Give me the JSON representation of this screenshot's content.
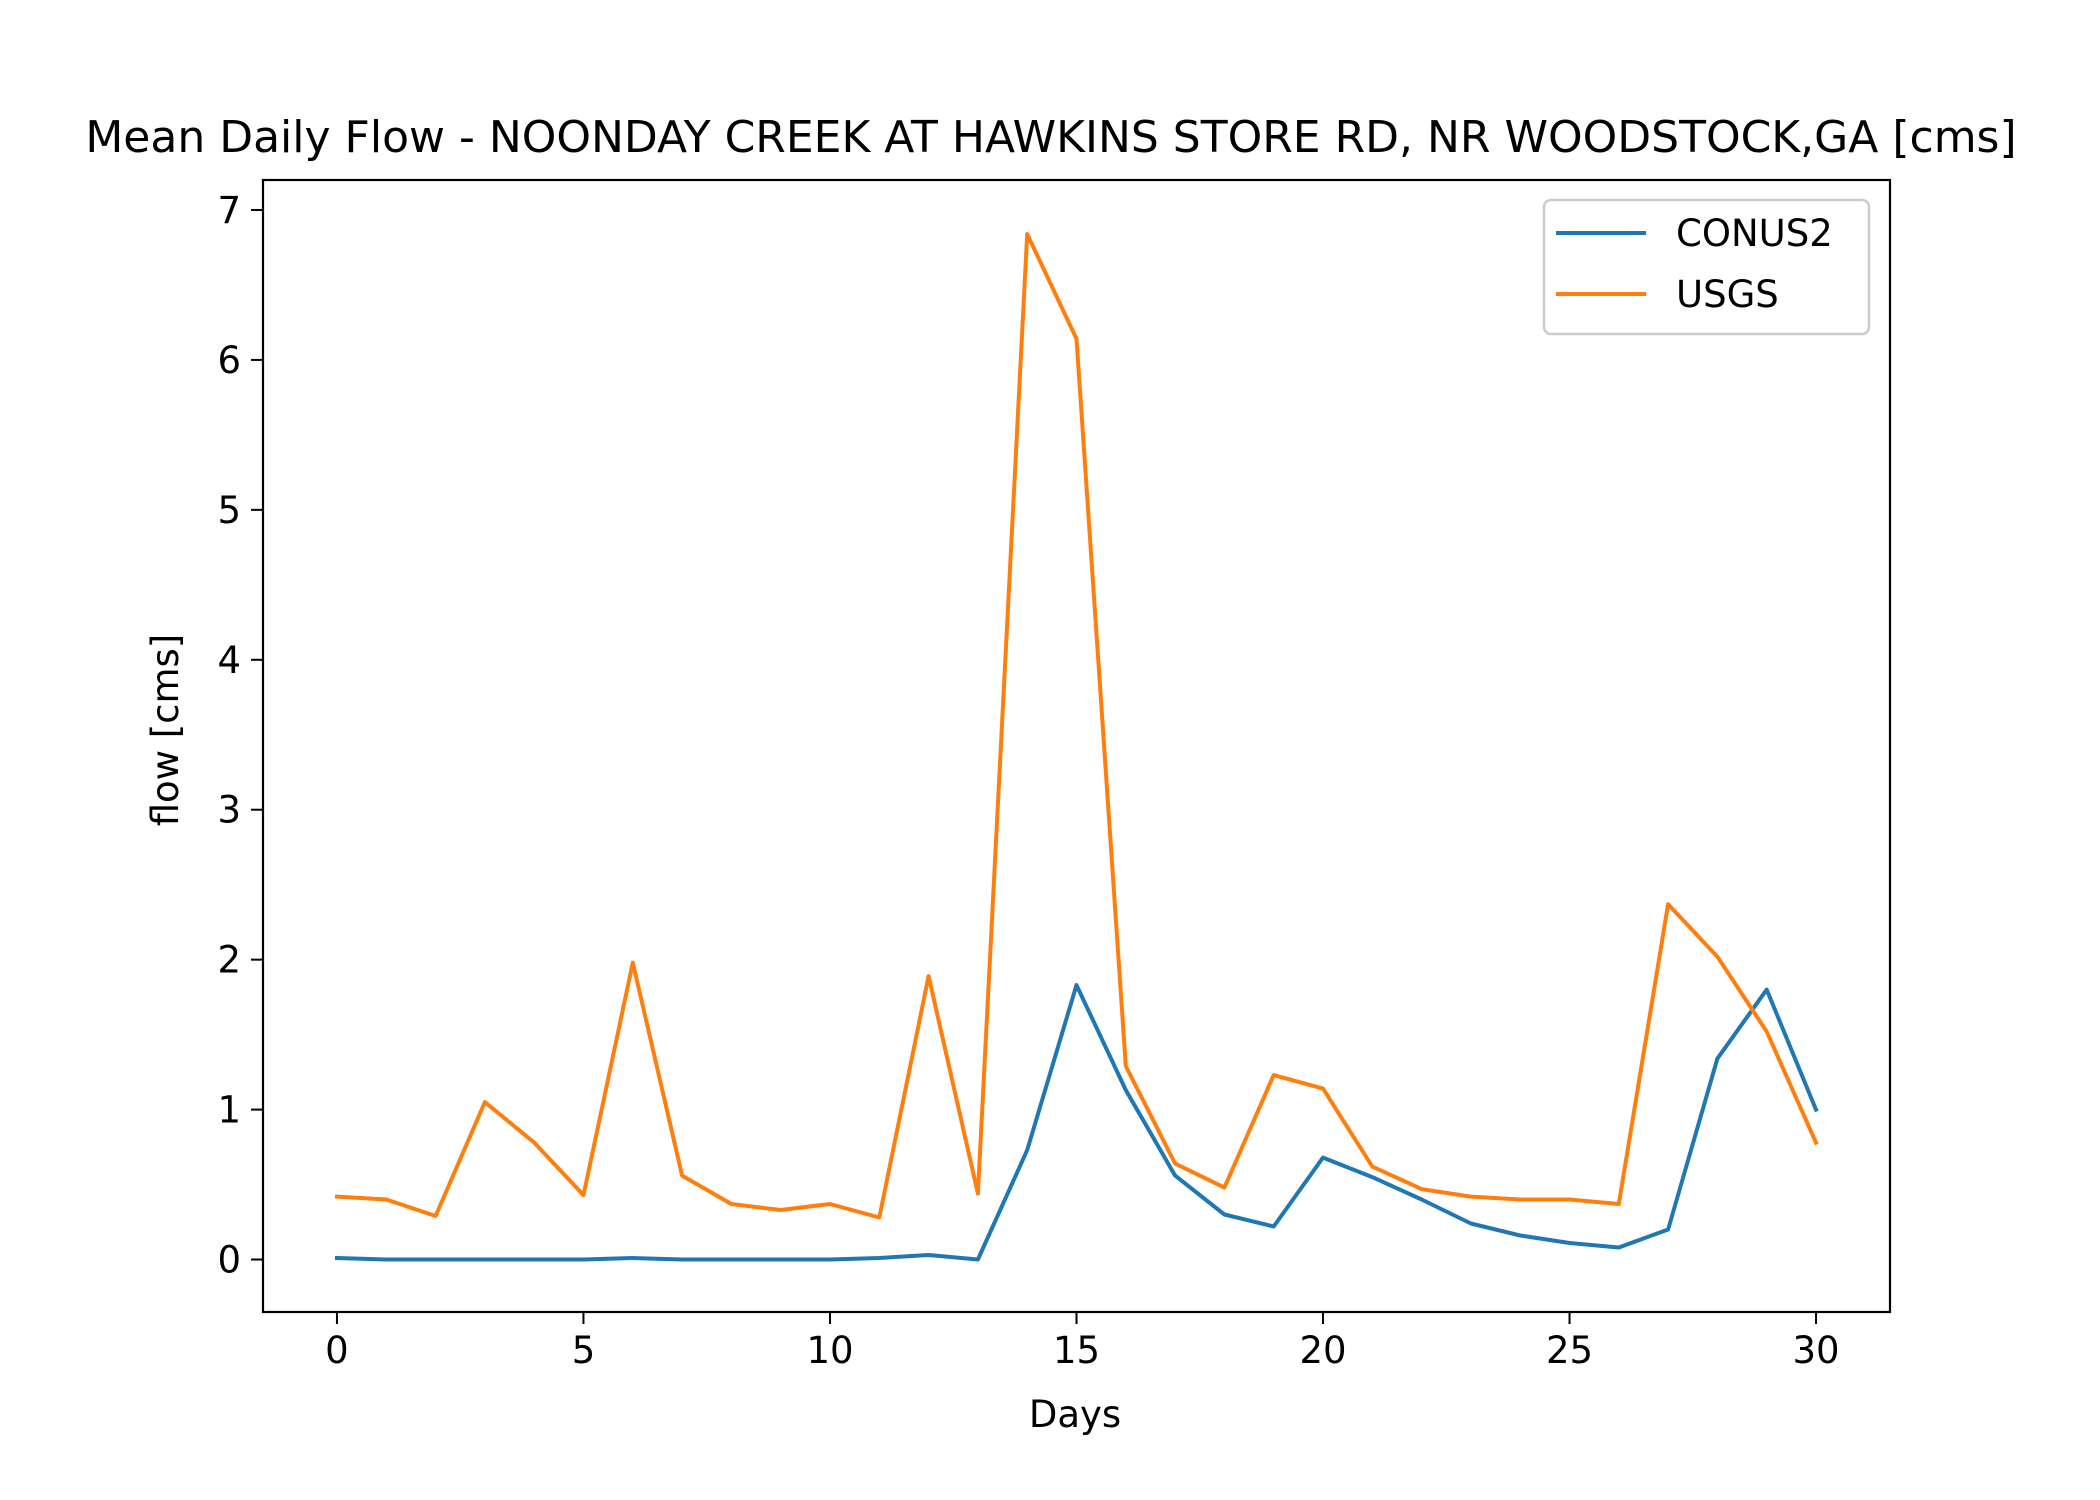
{
  "chart_data": {
    "type": "line",
    "title": "Mean Daily Flow - NOONDAY CREEK AT HAWKINS STORE RD, NR WOODSTOCK,GA [cms]",
    "xlabel": "Days",
    "ylabel": "flow [cms]",
    "xlim": [
      -1.5,
      31.5
    ],
    "ylim": [
      -0.35,
      7.2
    ],
    "xticks": [
      0,
      5,
      10,
      15,
      20,
      25,
      30
    ],
    "yticks": [
      0,
      1,
      2,
      3,
      4,
      5,
      6,
      7
    ],
    "grid": false,
    "legend_position": "top-right",
    "x": [
      0,
      1,
      2,
      3,
      4,
      5,
      6,
      7,
      8,
      9,
      10,
      11,
      12,
      13,
      14,
      15,
      16,
      17,
      18,
      19,
      20,
      21,
      22,
      23,
      24,
      25,
      26,
      27,
      28,
      29,
      30
    ],
    "series": [
      {
        "name": "CONUS2",
        "color": "#1f77b4",
        "values": [
          0.01,
          0.0,
          0.0,
          0.0,
          0.0,
          0.0,
          0.01,
          0.0,
          0.0,
          0.0,
          0.0,
          0.01,
          0.03,
          0.0,
          0.73,
          1.83,
          1.13,
          0.56,
          0.3,
          0.22,
          0.68,
          0.55,
          0.4,
          0.24,
          0.16,
          0.11,
          0.08,
          0.2,
          1.34,
          1.8,
          1.0
        ]
      },
      {
        "name": "USGS",
        "color": "#ff7f0e",
        "values": [
          0.42,
          0.4,
          0.29,
          1.05,
          0.78,
          0.43,
          1.98,
          0.56,
          0.37,
          0.33,
          0.37,
          0.28,
          1.89,
          0.44,
          6.84,
          6.14,
          1.29,
          0.64,
          0.48,
          1.23,
          1.14,
          0.62,
          0.47,
          0.42,
          0.4,
          0.4,
          0.37,
          2.37,
          2.02,
          1.52,
          0.78
        ]
      }
    ]
  }
}
